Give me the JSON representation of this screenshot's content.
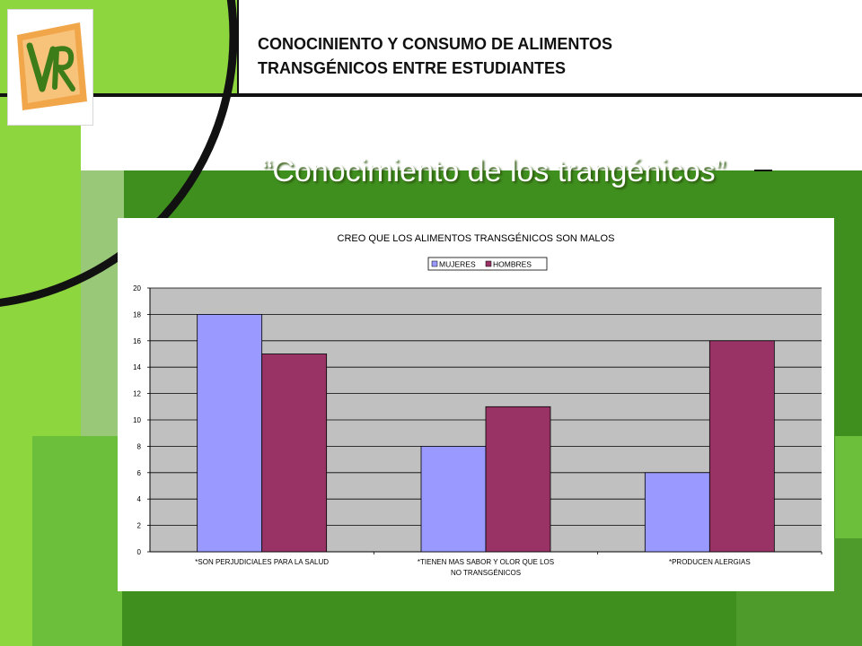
{
  "header": {
    "title_line1": "CONOCINIENTO Y CONSUMO DE ALIMENTOS",
    "title_line2": "TRANSGÉNICOS ENTRE ESTUDIANTES"
  },
  "slide": {
    "subtitle": "“Conocimiento de los trangénicos”"
  },
  "logo": {
    "icon": "vr-logo-icon"
  },
  "colors": {
    "green_light": "#8ed63e",
    "green_dark": "#3f8f1f",
    "green_pale": "#a9d488",
    "plot_bg": "#c0c0c0",
    "mujeres": "#9999ff",
    "hombres": "#993366"
  },
  "chart_data": {
    "type": "bar",
    "title": "CREO QUE LOS ALIMENTOS TRANSGÉNICOS  SON MALOS",
    "legend_position": "top-center",
    "grid": true,
    "categories": [
      [
        "*SON PERJUDICIALES PARA LA SALUD"
      ],
      [
        "*TIENEN MAS SABOR Y OLOR QUE LOS",
        "NO TRANSGÉNICOS"
      ],
      [
        "*PRODUCEN ALERGIAS"
      ]
    ],
    "series": [
      {
        "name": "MUJERES",
        "values": [
          18,
          8,
          6
        ],
        "color": "#9999ff"
      },
      {
        "name": "HOMBRES",
        "values": [
          15,
          11,
          16
        ],
        "color": "#993366"
      }
    ],
    "ylim": [
      0,
      20
    ],
    "yticks": [
      0,
      2,
      4,
      6,
      8,
      10,
      12,
      14,
      16,
      18,
      20
    ]
  }
}
